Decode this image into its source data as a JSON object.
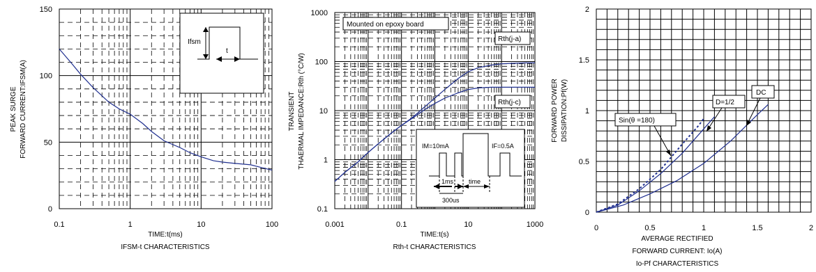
{
  "chart_data": [
    {
      "type": "line",
      "title": "IFSM-t CHARACTERISTICS",
      "xlabel": "TIME:t(ms)",
      "ylabel": [
        "PEAK SURGE",
        "FORWARD CURRENT:IFSM(A)"
      ],
      "xscale": "log",
      "xlim": [
        0.1,
        100
      ],
      "ylim": [
        0,
        150
      ],
      "xticks": [
        "0.1",
        "1",
        "10",
        "100"
      ],
      "yticks": [
        "0",
        "50",
        "100",
        "150"
      ],
      "grid": true,
      "curve_color": "#1f2f8f",
      "series": [
        {
          "x": [
            0.1,
            0.15,
            0.2,
            0.3,
            0.5,
            0.7,
            1,
            1.5,
            2,
            3,
            5,
            7,
            10,
            15,
            20,
            30,
            50,
            70,
            100
          ],
          "y": [
            120,
            109,
            101,
            91,
            80,
            75,
            71,
            64,
            58,
            51,
            46,
            42,
            39,
            36,
            35,
            34,
            33,
            31,
            29
          ]
        }
      ],
      "inset_labels": {
        "amplitude": "Ifsm",
        "duration": "t"
      }
    },
    {
      "type": "line",
      "title": "Rth-t CHARACTERISTICS",
      "xlabel": "TIME:t(s)",
      "ylabel": [
        "TRANSIENT",
        "THAERMAL IMPEDANCE:Rth (°C/W)"
      ],
      "xscale": "log",
      "yscale": "log",
      "xlim": [
        0.001,
        1000
      ],
      "ylim": [
        0.1,
        1000
      ],
      "xticks": [
        "0.001",
        "0.1",
        "10",
        "1000"
      ],
      "yticks": [
        "0.1",
        "1",
        "10",
        "100",
        "1000"
      ],
      "grid": true,
      "curve_color": "#1f2f8f",
      "annotation": "Mounted on epoxy board",
      "series": [
        {
          "name": "Rth(j-a)",
          "x": [
            0.001,
            0.002,
            0.005,
            0.01,
            0.02,
            0.05,
            0.1,
            0.2,
            0.5,
            1,
            2,
            5,
            10,
            20,
            50,
            100,
            200,
            500,
            1000
          ],
          "y": [
            0.36,
            0.55,
            0.9,
            1.4,
            2.1,
            3.5,
            5.0,
            7.0,
            12,
            18,
            27,
            45,
            62,
            75,
            85,
            90,
            92,
            94,
            94
          ]
        },
        {
          "name": "Rth(j-c)",
          "x": [
            0.001,
            0.002,
            0.005,
            0.01,
            0.02,
            0.05,
            0.1,
            0.2,
            0.5,
            1,
            2,
            5,
            10,
            20,
            50,
            100,
            200,
            500,
            1000
          ],
          "y": [
            0.36,
            0.55,
            0.9,
            1.4,
            2.1,
            3.5,
            5.0,
            6.8,
            10.5,
            14,
            18,
            23,
            27,
            29,
            30,
            30,
            30,
            30,
            30
          ]
        }
      ],
      "inset_labels": {
        "im": "IM=10mA",
        "if": "IF=0.5A",
        "pulse": "1ms",
        "time": "time",
        "interval": "300us"
      }
    },
    {
      "type": "line",
      "title": "Io-Pf CHARACTERISTICS",
      "xlabel": [
        "AVERAGE RECTIFIED",
        "FORWARD CURRENT: Io(A)"
      ],
      "ylabel": [
        "FORWARD POWER",
        "DISSIPATION:Pf(W)"
      ],
      "xlim": [
        0,
        2
      ],
      "ylim": [
        0,
        2
      ],
      "xticks": [
        "0",
        "0.5",
        "1",
        "1.5",
        "2"
      ],
      "yticks": [
        "0",
        "0.5",
        "1",
        "1.5",
        "2"
      ],
      "grid": true,
      "curve_color": "#1f2f8f",
      "series": [
        {
          "name": "DC",
          "x": [
            0,
            0.25,
            0.5,
            0.75,
            1.0,
            1.25,
            1.5,
            1.6
          ],
          "y": [
            0,
            0.07,
            0.18,
            0.31,
            0.48,
            0.7,
            0.96,
            1.06
          ]
        },
        {
          "name": "D=1/2",
          "x": [
            0,
            0.2,
            0.4,
            0.6,
            0.8,
            1.0,
            1.1
          ],
          "y": [
            0,
            0.07,
            0.21,
            0.38,
            0.58,
            0.82,
            0.94
          ]
        },
        {
          "name": "Sin(θ =180)",
          "style": "dotted",
          "x": [
            0,
            0.2,
            0.4,
            0.6,
            0.8,
            0.95,
            1.0
          ],
          "y": [
            0,
            0.08,
            0.23,
            0.42,
            0.67,
            0.85,
            0.92
          ]
        }
      ]
    }
  ]
}
